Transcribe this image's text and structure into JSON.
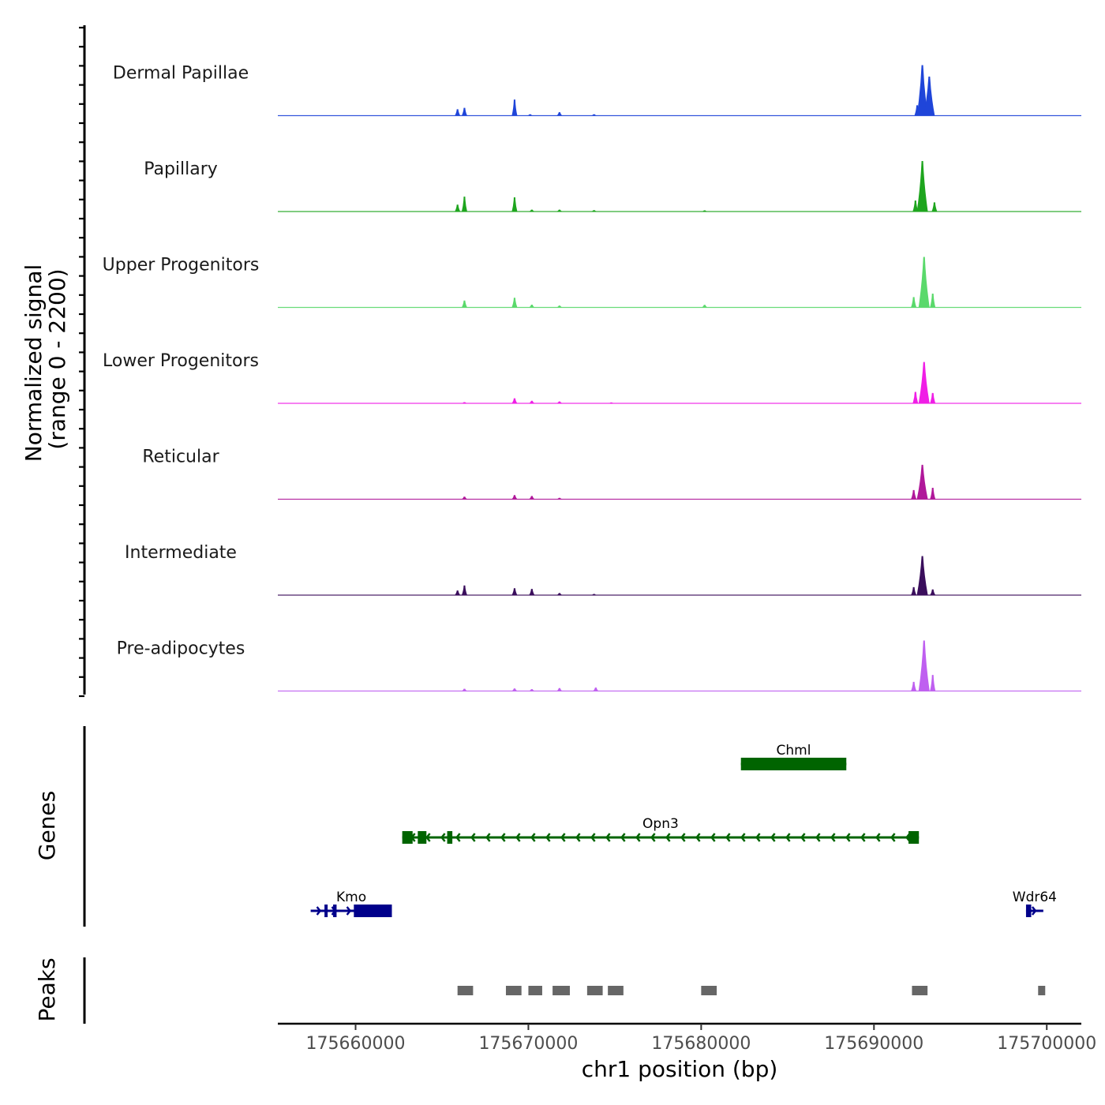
{
  "chart_data": {
    "type": "area",
    "title": "",
    "chromosome": "chr1",
    "xlabel": "chr1 position (bp)",
    "ylabel": "Normalized signal",
    "ylabel_range": "(range 0 - 2200)",
    "xlim": [
      175655500,
      175702000
    ],
    "ylim": [
      0,
      2200
    ],
    "x_ticks": [
      175660000,
      175670000,
      175680000,
      175690000,
      175700000
    ],
    "x_tick_labels": [
      "175660000",
      "175670000",
      "175680000",
      "175690000",
      "175700000"
    ],
    "series": [
      {
        "name": "Dermal Papillae",
        "color": "#1f45d9",
        "peaks": [
          [
            175665900,
            280
          ],
          [
            175666300,
            340
          ],
          [
            175669200,
            700
          ],
          [
            175670100,
            60
          ],
          [
            175671800,
            150
          ],
          [
            175673800,
            60
          ],
          [
            175692500,
            450
          ],
          [
            175692800,
            2200
          ],
          [
            175693200,
            1700
          ]
        ]
      },
      {
        "name": "Papillary",
        "color": "#1ea51e",
        "peaks": [
          [
            175665900,
            300
          ],
          [
            175666300,
            650
          ],
          [
            175669200,
            620
          ],
          [
            175670200,
            80
          ],
          [
            175671800,
            80
          ],
          [
            175673800,
            60
          ],
          [
            175680200,
            50
          ],
          [
            175692400,
            480
          ],
          [
            175692800,
            2200
          ],
          [
            175693500,
            400
          ]
        ]
      },
      {
        "name": "Upper Progenitors",
        "color": "#5ad96b",
        "peaks": [
          [
            175666300,
            300
          ],
          [
            175669200,
            420
          ],
          [
            175670200,
            120
          ],
          [
            175671800,
            80
          ],
          [
            175680200,
            110
          ],
          [
            175692300,
            450
          ],
          [
            175692900,
            2200
          ],
          [
            175693400,
            600
          ]
        ]
      },
      {
        "name": "Lower Progenitors",
        "color": "#f01ee6",
        "peaks": [
          [
            175666300,
            50
          ],
          [
            175669200,
            220
          ],
          [
            175670200,
            110
          ],
          [
            175671800,
            80
          ],
          [
            175674800,
            40
          ],
          [
            175692400,
            500
          ],
          [
            175692900,
            1800
          ],
          [
            175693400,
            450
          ]
        ]
      },
      {
        "name": "Reticular",
        "color": "#b0189a",
        "peaks": [
          [
            175666300,
            110
          ],
          [
            175669200,
            180
          ],
          [
            175670200,
            140
          ],
          [
            175671800,
            60
          ],
          [
            175692300,
            400
          ],
          [
            175692800,
            1500
          ],
          [
            175693400,
            500
          ]
        ]
      },
      {
        "name": "Intermediate",
        "color": "#3a0e5c",
        "peaks": [
          [
            175665900,
            200
          ],
          [
            175666300,
            420
          ],
          [
            175669200,
            300
          ],
          [
            175670200,
            270
          ],
          [
            175671800,
            90
          ],
          [
            175673800,
            50
          ],
          [
            175692300,
            350
          ],
          [
            175692800,
            1700
          ],
          [
            175693400,
            250
          ]
        ]
      },
      {
        "name": "Pre-adipocytes",
        "color": "#bf5ff0",
        "peaks": [
          [
            175666300,
            100
          ],
          [
            175669200,
            110
          ],
          [
            175670200,
            80
          ],
          [
            175671800,
            130
          ],
          [
            175673900,
            150
          ],
          [
            175692300,
            400
          ],
          [
            175692900,
            2200
          ],
          [
            175693400,
            700
          ]
        ]
      }
    ],
    "genes": {
      "title": "Genes",
      "items": [
        {
          "name": "Chml",
          "start": 175682300,
          "end": 175688400,
          "strand": "+",
          "color": "#006400",
          "row": 0,
          "exons": [
            [
              175682300,
              175688400
            ]
          ]
        },
        {
          "name": "Opn3",
          "start": 175662700,
          "end": 175692600,
          "strand": "-",
          "color": "#006400",
          "row": 1,
          "exons": [
            [
              175662700,
              175663300
            ],
            [
              175663600,
              175664100
            ],
            [
              175665300,
              175665600
            ],
            [
              175692000,
              175692600
            ]
          ]
        },
        {
          "name": "Kmo",
          "start": 175657400,
          "end": 175662100,
          "strand": "+",
          "color": "#00008b",
          "row": 2,
          "exons": [
            [
              175658200,
              175658300
            ],
            [
              175658700,
              175658900
            ],
            [
              175659900,
              175662100
            ]
          ]
        },
        {
          "name": "Wdr64",
          "start": 175698800,
          "end": 175699800,
          "strand": "+",
          "color": "#00008b",
          "row": 2,
          "exons": [
            [
              175698800,
              175699100
            ]
          ]
        }
      ]
    },
    "peaks_track": {
      "title": "Peaks",
      "color": "#666666",
      "regions": [
        [
          175665900,
          175666800
        ],
        [
          175668700,
          175669600
        ],
        [
          175670000,
          175670800
        ],
        [
          175671400,
          175672400
        ],
        [
          175673400,
          175674300
        ],
        [
          175674600,
          175675500
        ],
        [
          175680000,
          175680900
        ],
        [
          175692200,
          175693100
        ],
        [
          175699500,
          175699900
        ]
      ]
    }
  }
}
